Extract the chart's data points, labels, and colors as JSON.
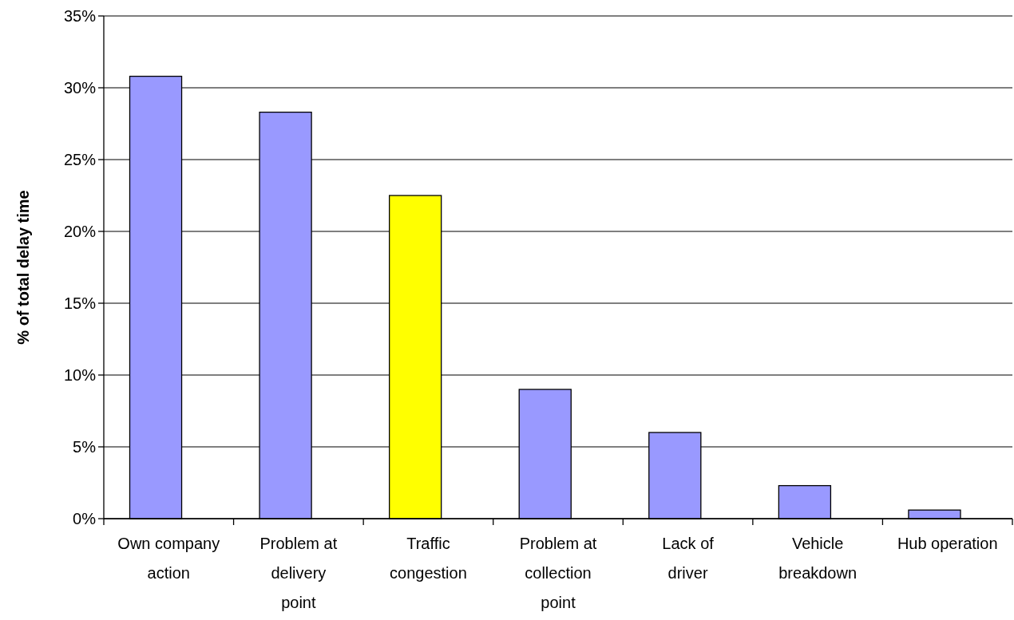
{
  "chart_data": {
    "type": "bar",
    "ylabel": "% of total delay time",
    "categories": [
      "Own company action",
      "Problem at delivery point",
      "Traffic congestion",
      "Problem at collection point",
      "Lack of driver",
      "Vehicle breakdown",
      "Hub operation"
    ],
    "values": [
      30.8,
      28.3,
      22.5,
      9.0,
      6.0,
      2.3,
      0.6
    ],
    "colors": [
      "#9999ff",
      "#9999ff",
      "#ffff00",
      "#9999ff",
      "#9999ff",
      "#9999ff",
      "#9999ff"
    ],
    "ylim": [
      0,
      35
    ],
    "yticks": [
      {
        "value": 0,
        "label": "0%"
      },
      {
        "value": 5,
        "label": "5%"
      },
      {
        "value": 10,
        "label": "10%"
      },
      {
        "value": 15,
        "label": "15%"
      },
      {
        "value": 20,
        "label": "20%"
      },
      {
        "value": 25,
        "label": "25%"
      },
      {
        "value": 30,
        "label": "30%"
      },
      {
        "value": 35,
        "label": "35%"
      }
    ],
    "grid": "y"
  }
}
